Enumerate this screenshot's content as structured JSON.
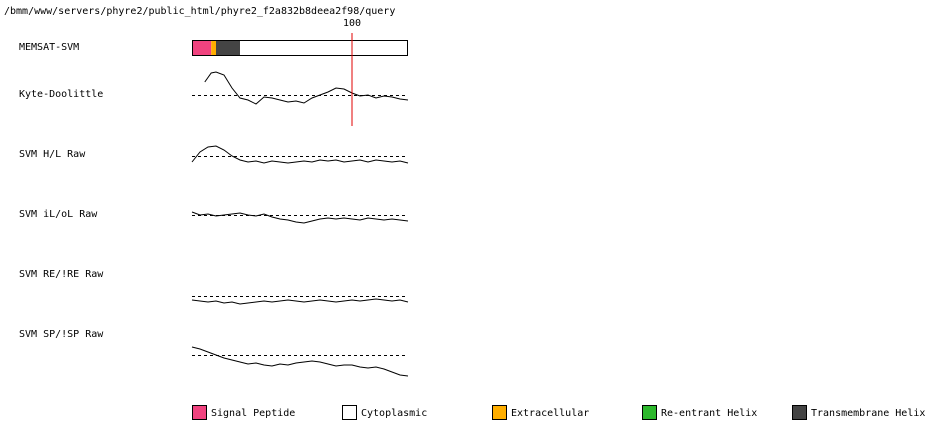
{
  "chart_data": {
    "type": "memsat",
    "path": "/bmm/www/servers/phyre2/public_html/phyre2_f2a832b8deea2f98/query",
    "xlim": [
      0,
      135
    ],
    "xticks": [
      100
    ],
    "topology": {
      "label": "MEMSAT-SVM",
      "segments": [
        {
          "start": 0,
          "end": 12,
          "color": "#f0437f"
        },
        {
          "start": 12,
          "end": 15,
          "color": "#ffae00"
        },
        {
          "start": 15,
          "end": 30,
          "color": "#444444"
        },
        {
          "start": 30,
          "end": 135,
          "color": "#ffffff"
        }
      ]
    },
    "tracks": [
      {
        "label": "Kyte-Doolittle",
        "x": [
          8,
          12,
          15,
          20,
          25,
          30,
          35,
          40,
          45,
          50,
          55,
          60,
          65,
          70,
          75,
          80,
          85,
          90,
          95,
          100,
          105,
          110,
          115,
          120,
          125,
          130,
          135
        ],
        "values": [
          1.3,
          2.2,
          2.3,
          2.0,
          0.7,
          -0.3,
          -0.5,
          -0.9,
          -0.2,
          -0.3,
          -0.5,
          -0.7,
          -0.6,
          -0.8,
          -0.3,
          0,
          0.3,
          0.7,
          0.6,
          0.2,
          -0.1,
          0,
          -0.3,
          -0.1,
          -0.2,
          -0.4,
          -0.5
        ]
      },
      {
        "label": "SVM H/L Raw",
        "x": [
          0,
          5,
          10,
          15,
          20,
          25,
          30,
          35,
          40,
          45,
          50,
          55,
          60,
          65,
          70,
          75,
          80,
          85,
          90,
          95,
          100,
          105,
          110,
          115,
          120,
          125,
          130,
          135
        ],
        "values": [
          -0.6,
          0.4,
          0.9,
          1.0,
          0.6,
          0,
          -0.4,
          -0.6,
          -0.5,
          -0.7,
          -0.5,
          -0.6,
          -0.7,
          -0.6,
          -0.5,
          -0.6,
          -0.4,
          -0.5,
          -0.4,
          -0.6,
          -0.5,
          -0.4,
          -0.6,
          -0.4,
          -0.5,
          -0.6,
          -0.5,
          -0.7
        ]
      },
      {
        "label": "SVM iL/oL Raw",
        "x": [
          0,
          5,
          10,
          15,
          20,
          25,
          30,
          35,
          40,
          45,
          50,
          55,
          60,
          65,
          70,
          75,
          80,
          85,
          90,
          95,
          100,
          105,
          110,
          115,
          120,
          125,
          130,
          135
        ],
        "values": [
          0.3,
          0,
          0.1,
          -0.1,
          0,
          0.1,
          0.2,
          0,
          -0.1,
          0.1,
          -0.2,
          -0.4,
          -0.5,
          -0.7,
          -0.8,
          -0.6,
          -0.4,
          -0.3,
          -0.4,
          -0.3,
          -0.4,
          -0.5,
          -0.3,
          -0.4,
          -0.5,
          -0.4,
          -0.5,
          -0.6
        ]
      },
      {
        "label": "SVM RE/!RE Raw",
        "x": [
          0,
          5,
          10,
          15,
          20,
          25,
          30,
          35,
          40,
          45,
          50,
          55,
          60,
          65,
          70,
          75,
          80,
          85,
          90,
          95,
          100,
          105,
          110,
          115,
          120,
          125,
          130,
          135
        ],
        "values": [
          -0.4,
          -0.5,
          -0.6,
          -0.5,
          -0.7,
          -0.6,
          -0.8,
          -0.7,
          -0.6,
          -0.5,
          -0.6,
          -0.5,
          -0.4,
          -0.5,
          -0.6,
          -0.5,
          -0.4,
          -0.5,
          -0.6,
          -0.5,
          -0.4,
          -0.5,
          -0.4,
          -0.3,
          -0.4,
          -0.5,
          -0.4,
          -0.6
        ]
      },
      {
        "label": "SVM SP/!SP Raw",
        "x": [
          0,
          5,
          10,
          15,
          20,
          25,
          30,
          35,
          40,
          45,
          50,
          55,
          60,
          65,
          70,
          75,
          80,
          85,
          90,
          95,
          100,
          105,
          110,
          115,
          120,
          125,
          130,
          135
        ],
        "values": [
          0.8,
          0.6,
          0.3,
          0,
          -0.3,
          -0.5,
          -0.7,
          -0.9,
          -0.8,
          -1.0,
          -1.1,
          -0.9,
          -1.0,
          -0.8,
          -0.7,
          -0.6,
          -0.7,
          -0.9,
          -1.1,
          -1.0,
          -1.0,
          -1.2,
          -1.3,
          -1.2,
          -1.4,
          -1.7,
          -2.0,
          -2.1
        ]
      }
    ],
    "legend": [
      {
        "name": "Signal Peptide",
        "color": "#f0437f"
      },
      {
        "name": "Cytoplasmic",
        "color": "#ffffff"
      },
      {
        "name": "Extracellular",
        "color": "#ffae00"
      },
      {
        "name": "Re-entrant Helix",
        "color": "#2db82d"
      },
      {
        "name": "Transmembrane Helix",
        "color": "#444444"
      }
    ]
  }
}
